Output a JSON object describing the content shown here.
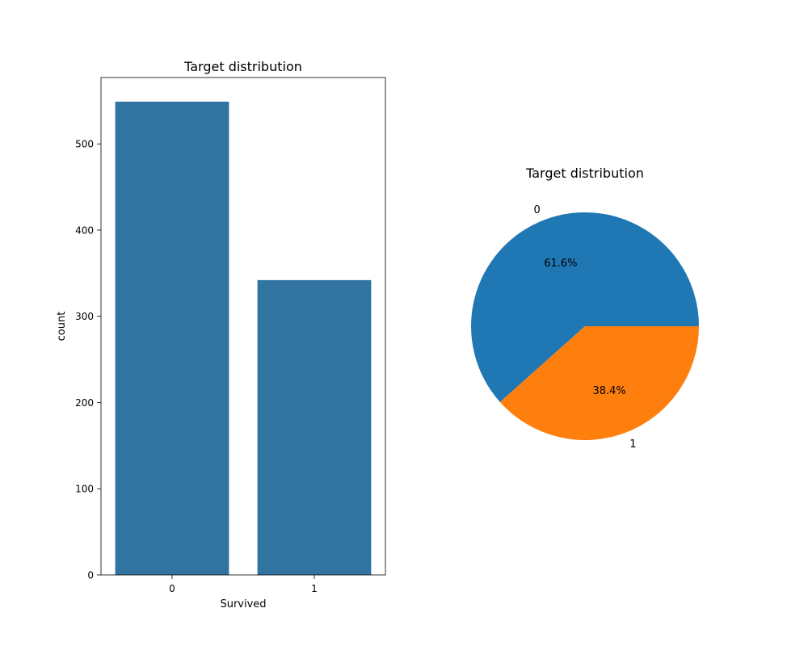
{
  "chart_data": [
    {
      "type": "bar",
      "title": "Target distribution",
      "xlabel": "Survived",
      "ylabel": "count",
      "categories": [
        "0",
        "1"
      ],
      "values": [
        549,
        342
      ],
      "ylim": [
        0,
        577
      ],
      "yticks": [
        0,
        100,
        200,
        300,
        400,
        500
      ],
      "grid": false,
      "color": "#3274a1"
    },
    {
      "type": "pie",
      "title": "Target distribution",
      "labels": [
        "0",
        "1"
      ],
      "values": [
        61.6,
        38.4
      ],
      "percent_labels": [
        "61.6%",
        "38.4%"
      ],
      "colors": [
        "#1f77b4",
        "#ff7f0e"
      ]
    }
  ]
}
